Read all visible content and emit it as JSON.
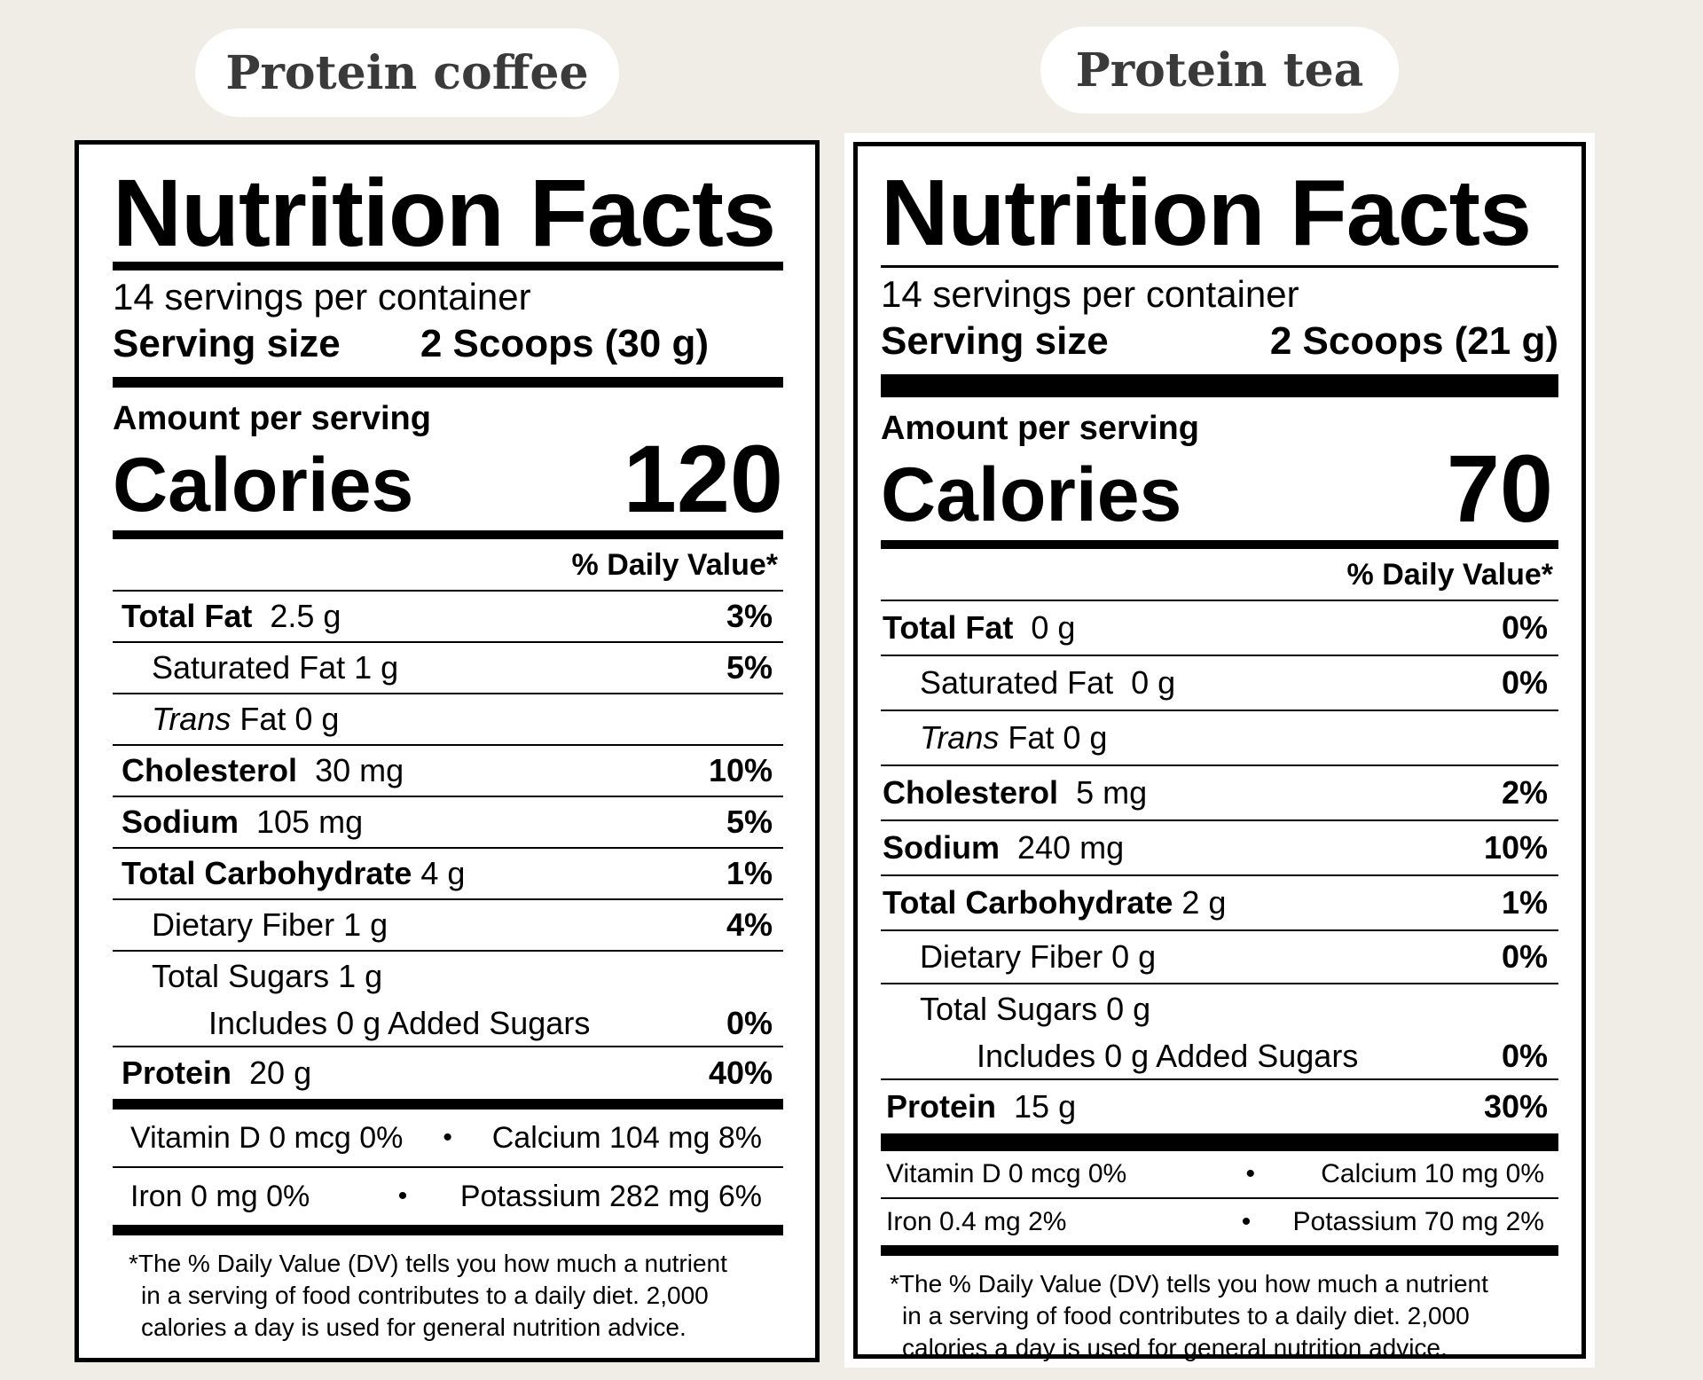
{
  "products": [
    {
      "name": "Protein coffee",
      "title": "Nutrition Facts",
      "servings_per_container": "14 servings per container",
      "serving_size_label": "Serving size",
      "serving_size_value": "2 Scoops (30 g)",
      "amount_per_serving": "Amount per serving",
      "calories_label": "Calories",
      "calories_value": "120",
      "dv_header": "% Daily Value*",
      "nutrients": {
        "total_fat": {
          "label": "Total Fat",
          "amount": "2.5 g",
          "dv": "3%"
        },
        "saturated_fat": {
          "label": "Saturated Fat",
          "amount": "1 g",
          "dv": "5%"
        },
        "trans_fat": {
          "label_italic": "Trans",
          "label": "Fat",
          "amount": "0 g"
        },
        "cholesterol": {
          "label": "Cholesterol",
          "amount": "30 mg",
          "dv": "10%"
        },
        "sodium": {
          "label": "Sodium",
          "amount": "105 mg",
          "dv": "5%"
        },
        "total_carbohydrate": {
          "label": "Total Carbohydrate",
          "amount": "4 g",
          "dv": "1%"
        },
        "dietary_fiber": {
          "label": "Dietary Fiber",
          "amount": "1 g",
          "dv": "4%"
        },
        "total_sugars": {
          "label": "Total Sugars",
          "amount": "1 g"
        },
        "added_sugars": {
          "label": "Includes 0 g Added Sugars",
          "dv": "0%"
        },
        "protein": {
          "label": "Protein",
          "amount": "20 g",
          "dv": "40%"
        }
      },
      "vitamins": {
        "vitamin_d": "Vitamin D 0 mcg 0%",
        "calcium": "Calcium 104 mg 8%",
        "iron": "Iron 0 mg 0%",
        "potassium": "Potassium 282 mg 6%",
        "separator": "•"
      },
      "footnote": {
        "line1": "*The % Daily Value (DV) tells you how much a nutrient",
        "line2": "in a serving of food contributes to a daily diet. 2,000",
        "line3": "calories a day is used for general nutrition advice."
      }
    },
    {
      "name": "Protein tea",
      "title": "Nutrition Facts",
      "servings_per_container": "14 servings per container",
      "serving_size_label": "Serving size",
      "serving_size_value": "2 Scoops (21 g)",
      "amount_per_serving": "Amount per serving",
      "calories_label": "Calories",
      "calories_value": "70",
      "dv_header": "% Daily Value*",
      "nutrients": {
        "total_fat": {
          "label": "Total Fat",
          "amount": "0 g",
          "dv": "0%"
        },
        "saturated_fat": {
          "label": "Saturated Fat",
          "amount": "0 g",
          "dv": "0%"
        },
        "trans_fat": {
          "label_italic": "Trans",
          "label": "Fat",
          "amount": "0 g"
        },
        "cholesterol": {
          "label": "Cholesterol",
          "amount": "5 mg",
          "dv": "2%"
        },
        "sodium": {
          "label": "Sodium",
          "amount": "240 mg",
          "dv": "10%"
        },
        "total_carbohydrate": {
          "label": "Total Carbohydrate",
          "amount": "2 g",
          "dv": "1%"
        },
        "dietary_fiber": {
          "label": "Dietary Fiber",
          "amount": "0 g",
          "dv": "0%"
        },
        "total_sugars": {
          "label": "Total Sugars",
          "amount": "0 g"
        },
        "added_sugars": {
          "label": "Includes 0 g Added Sugars",
          "dv": "0%"
        },
        "protein": {
          "label": "Protein",
          "amount": "15 g",
          "dv": "30%"
        }
      },
      "vitamins": {
        "vitamin_d": "Vitamin D 0 mcg 0%",
        "calcium": "Calcium 10 mg 0%",
        "iron": "Iron 0.4 mg 2%",
        "potassium": "Potassium 70 mg 2%",
        "separator": "•"
      },
      "footnote": {
        "line1": "*The % Daily Value (DV) tells you how much a nutrient",
        "line2": "in a serving of food contributes to a daily diet. 2,000",
        "line3": "calories a day is used for general nutrition advice."
      }
    }
  ]
}
